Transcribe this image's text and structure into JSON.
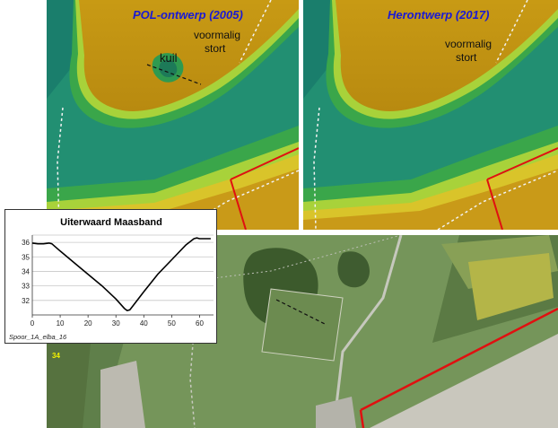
{
  "panels": {
    "left": {
      "title": "POL-ontwerp (2005)",
      "labels": {
        "kuil": "kuil",
        "former_dump_line1": "voormalig",
        "former_dump_line2": "stort"
      }
    },
    "right": {
      "title": "Herontwerp (2017)",
      "labels": {
        "former_dump_line1": "voormalig",
        "former_dump_line2": "stort"
      }
    }
  },
  "aerial": {
    "marker_label": "34"
  },
  "profile": {
    "footer": "Spoor_1A_elba_16"
  },
  "chart_data": {
    "type": "line",
    "title": "Uiterwaard Maasband",
    "xlabel": "",
    "ylabel": "",
    "xlim": [
      0,
      65
    ],
    "ylim": [
      31,
      36.5
    ],
    "xticks": [
      0,
      10,
      20,
      30,
      40,
      50,
      60
    ],
    "yticks": [
      32,
      33,
      34,
      35,
      36
    ],
    "grid": true,
    "color": "#000000",
    "x": [
      0,
      2,
      4,
      6,
      7,
      10,
      15,
      20,
      25,
      30,
      33,
      34,
      35,
      36,
      40,
      45,
      50,
      55,
      58,
      59,
      60,
      62,
      64
    ],
    "y": [
      35.95,
      35.9,
      35.9,
      35.95,
      35.9,
      35.4,
      34.6,
      33.8,
      33.0,
      32.1,
      31.45,
      31.3,
      31.35,
      31.6,
      32.6,
      33.8,
      34.8,
      35.8,
      36.25,
      36.3,
      36.25,
      36.25,
      36.25
    ]
  }
}
